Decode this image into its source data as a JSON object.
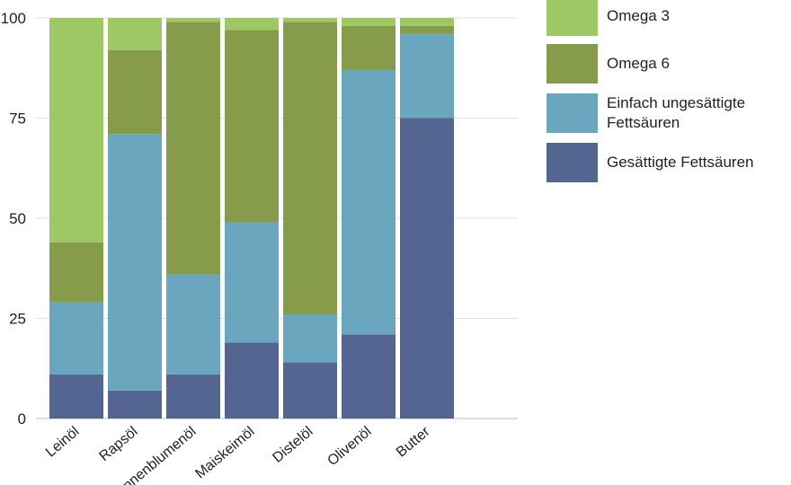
{
  "chart_data": {
    "type": "bar",
    "stacked": true,
    "categories": [
      "Leinöl",
      "Rapsöl",
      "Sonnenblumenöl",
      "Maiskeimöl",
      "Distelöl",
      "Olivenöl",
      "Butter"
    ],
    "series": [
      {
        "name": "Gesättigte Fettsäuren",
        "color": "#556592",
        "values": [
          11,
          7,
          11,
          19,
          14,
          21,
          75
        ]
      },
      {
        "name": "Einfach ungesättigte Fettsäuren",
        "color": "#6aa6bd",
        "values": [
          18,
          64,
          25,
          30,
          12,
          66,
          21
        ]
      },
      {
        "name": "Omega 6",
        "color": "#879c4b",
        "values": [
          15,
          21,
          63,
          48,
          73,
          11,
          2
        ]
      },
      {
        "name": "Omega 3",
        "color": "#9dc863",
        "values": [
          56,
          8,
          1,
          3,
          1,
          2,
          2
        ]
      }
    ],
    "ylim": [
      0,
      100
    ],
    "yticks": [
      0,
      25,
      50,
      75,
      100
    ],
    "grid": true,
    "legend_position": "right",
    "title": "",
    "xlabel": "",
    "ylabel": ""
  }
}
